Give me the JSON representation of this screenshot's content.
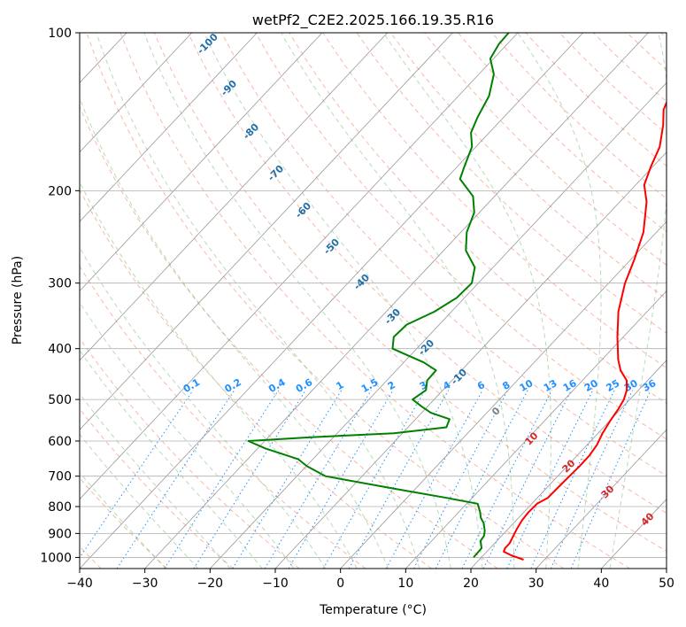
{
  "chart_data": {
    "type": "line",
    "title": "wetPf2_C2E2.2025.166.19.35.R16",
    "xlabel": "Temperature (°C)",
    "ylabel": "Pressure (hPa)",
    "xlim": [
      -40,
      50
    ],
    "ylim": [
      1050,
      100
    ],
    "y_scale": "log",
    "grid": true,
    "x_ticks": [
      -40,
      -30,
      -20,
      -10,
      0,
      10,
      20,
      30,
      40,
      50
    ],
    "y_ticks": [
      100,
      200,
      300,
      400,
      500,
      600,
      700,
      800,
      900,
      1000
    ],
    "skew_isotherms": true,
    "colors": {
      "temperature": "#ff0000",
      "dewpoint": "#008000",
      "dry_adiabats": "#f08060",
      "moist_adiabats": "#60b060",
      "mixing_ratio": "#1e90ff",
      "isotherms": "#999999"
    },
    "series": [
      {
        "key": "temperature",
        "points": [
          [
            1010,
            26.8
          ],
          [
            990,
            24.2
          ],
          [
            975,
            22.6
          ],
          [
            960,
            22.3
          ],
          [
            940,
            22.3
          ],
          [
            910,
            21.8
          ],
          [
            880,
            21.3
          ],
          [
            850,
            20.9
          ],
          [
            820,
            20.7
          ],
          [
            790,
            20.8
          ],
          [
            770,
            21.6
          ],
          [
            730,
            21.7
          ],
          [
            700,
            21.8
          ],
          [
            670,
            21.9
          ],
          [
            640,
            21.9
          ],
          [
            610,
            21.5
          ],
          [
            580,
            20.7
          ],
          [
            550,
            20.1
          ],
          [
            520,
            19.6
          ],
          [
            500,
            19.1
          ],
          [
            480,
            18.2
          ],
          [
            460,
            16.8
          ],
          [
            440,
            14.4
          ],
          [
            420,
            12.5
          ],
          [
            380,
            9.1
          ],
          [
            340,
            5.6
          ],
          [
            300,
            2.5
          ],
          [
            270,
            0.5
          ],
          [
            240,
            -2.0
          ],
          [
            210,
            -5.9
          ],
          [
            195,
            -8.7
          ],
          [
            180,
            -10.3
          ],
          [
            165,
            -11.8
          ],
          [
            150,
            -14.4
          ],
          [
            140,
            -16.6
          ],
          [
            130,
            -17.9
          ],
          [
            125,
            -18.3
          ],
          [
            118,
            -19.0
          ],
          [
            110,
            -21.4
          ],
          [
            100,
            -25.2
          ]
        ]
      },
      {
        "key": "dewpoint",
        "points": [
          [
            1000,
            18.8
          ],
          [
            960,
            18.7
          ],
          [
            930,
            17.5
          ],
          [
            910,
            17.3
          ],
          [
            890,
            16.7
          ],
          [
            860,
            15.4
          ],
          [
            840,
            14.2
          ],
          [
            820,
            13.3
          ],
          [
            790,
            11.7
          ],
          [
            770,
            6.1
          ],
          [
            740,
            -3.1
          ],
          [
            700,
            -15.6
          ],
          [
            670,
            -19.9
          ],
          [
            650,
            -22.2
          ],
          [
            620,
            -28.8
          ],
          [
            600,
            -32.5
          ],
          [
            590,
            -23.5
          ],
          [
            580,
            -11.3
          ],
          [
            565,
            -4.1
          ],
          [
            545,
            -4.8
          ],
          [
            530,
            -8.6
          ],
          [
            515,
            -11.0
          ],
          [
            500,
            -13.3
          ],
          [
            480,
            -12.6
          ],
          [
            460,
            -13.8
          ],
          [
            440,
            -13.9
          ],
          [
            425,
            -16.9
          ],
          [
            400,
            -23.7
          ],
          [
            380,
            -25.2
          ],
          [
            360,
            -25.0
          ],
          [
            340,
            -22.6
          ],
          [
            320,
            -21.2
          ],
          [
            300,
            -21.0
          ],
          [
            280,
            -22.8
          ],
          [
            260,
            -26.6
          ],
          [
            240,
            -29.1
          ],
          [
            220,
            -30.8
          ],
          [
            205,
            -33.3
          ],
          [
            190,
            -37.8
          ],
          [
            180,
            -38.9
          ],
          [
            165,
            -40.6
          ],
          [
            155,
            -42.8
          ],
          [
            145,
            -44.0
          ],
          [
            132,
            -45.3
          ],
          [
            120,
            -47.7
          ],
          [
            112,
            -50.5
          ],
          [
            105,
            -51.3
          ],
          [
            100,
            -51.4
          ]
        ]
      }
    ],
    "mixing_ratio_labels": [
      "0.1",
      "0.2",
      "0.4",
      "0.6",
      "1",
      "1.5",
      "2",
      "3",
      "4",
      "6",
      "8",
      "10",
      "13",
      "16",
      "20",
      "25",
      "30",
      "36"
    ],
    "dry_adiabat_labels": [
      "-100",
      "-90",
      "-80",
      "-70",
      "-60",
      "-50",
      "-40",
      "-30",
      "-20",
      "-10"
    ],
    "dry_adiabat_zero_label": "0",
    "moist_adiabat_labels": [
      "10",
      "20",
      "30",
      "40"
    ]
  }
}
